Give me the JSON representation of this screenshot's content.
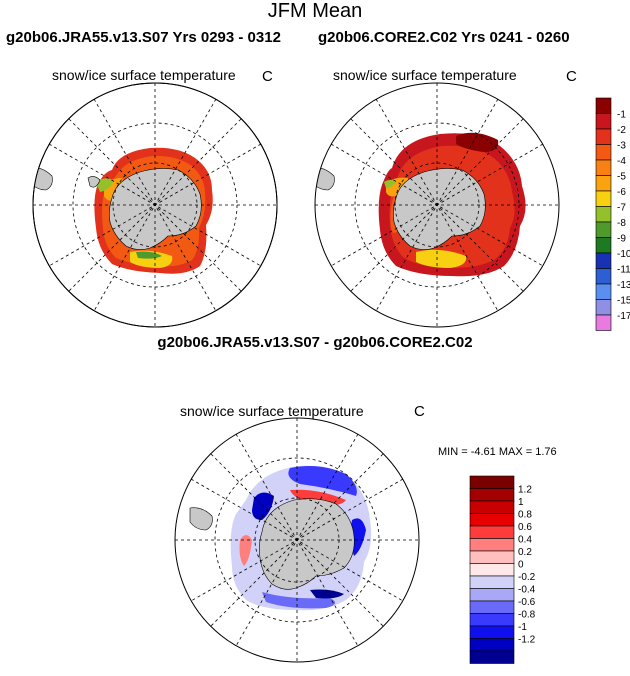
{
  "title": "JFM Mean",
  "panels": {
    "left": {
      "case": "g20b06.JRA55.v13.S07  Yrs 0293 - 0312",
      "variable": "snow/ice surface temperature",
      "units": "C"
    },
    "right": {
      "case": "g20b06.CORE2.C02  Yrs 0241 - 0260",
      "variable": "snow/ice surface temperature",
      "units": "C"
    },
    "diff": {
      "title": "g20b06.JRA55.v13.S07 - g20b06.CORE2.C02",
      "variable": "snow/ice surface temperature",
      "units": "C",
      "min_max": "MIN =  -4.61 MAX =    1.76"
    }
  },
  "colorbar_abs": {
    "labels": [
      "-1",
      "-2",
      "-3",
      "-4",
      "-5",
      "-6",
      "-7",
      "-8",
      "-9",
      "-10",
      "-11",
      "-13",
      "-15",
      "-17"
    ],
    "colors": [
      "#8b0000",
      "#c8161e",
      "#e2321c",
      "#f25a14",
      "#f98012",
      "#fba20f",
      "#f7d111",
      "#94c12b",
      "#4f9a2d",
      "#1d7a22",
      "#1932b4",
      "#2d5fd2",
      "#5a8ff0",
      "#8f90e4",
      "#e87ae0"
    ]
  },
  "colorbar_diff": {
    "labels": [
      "1.2",
      "1",
      "0.8",
      "0.6",
      "0.4",
      "0.2",
      "0",
      "-0.2",
      "-0.4",
      "-0.6",
      "-0.8",
      "-1",
      "-1.2"
    ],
    "colors": [
      "#7a0000",
      "#a40000",
      "#c80000",
      "#e80000",
      "#ff3c3c",
      "#ff7e7e",
      "#ffbfbf",
      "#ffe8e8",
      "#d2d2f8",
      "#a8a8f6",
      "#6a6af8",
      "#3a3aff",
      "#1010ee",
      "#0000c0",
      "#000090"
    ]
  }
}
